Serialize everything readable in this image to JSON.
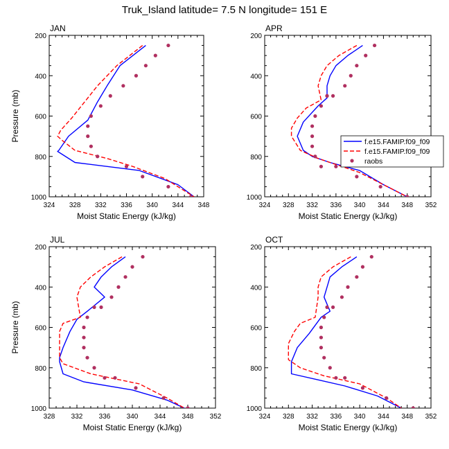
{
  "title": "Truk_Island  latitude= 7.5 N longitude= 151 E",
  "colors": {
    "model1": "#0000ff",
    "model2": "#ff0000",
    "obs": "#b03060",
    "axis": "#000000"
  },
  "legend": {
    "entries": [
      {
        "label": "f.e15.FAMIP.f09_f09",
        "style": "solid-line",
        "color": "#0000ff"
      },
      {
        "label": "f.e15.FAMIP.f09_f09",
        "style": "dashed-line",
        "color": "#ff0000"
      },
      {
        "label": "raobs",
        "style": "dot",
        "color": "#b03060"
      }
    ]
  },
  "chart_data": [
    {
      "type": "line",
      "label": "JAN",
      "xlabel": "Moist Static Energy (kJ/kg)",
      "ylabel": "Pressure (mb)",
      "xlim": [
        324,
        348
      ],
      "xticks": [
        324,
        328,
        332,
        336,
        340,
        344,
        348
      ],
      "ylim": [
        200,
        1000
      ],
      "yticks": [
        200,
        400,
        600,
        800,
        1000
      ],
      "y_reversed": true,
      "series": [
        {
          "name": "f.e15.FAMIP.f09_f09",
          "style": "solid",
          "x": [
            339,
            335,
            333,
            331.5,
            330,
            327,
            325.5,
            325.3,
            328,
            338,
            344,
            346.5
          ],
          "y": [
            250,
            350,
            450,
            530,
            620,
            700,
            770,
            775,
            830,
            870,
            940,
            1000
          ]
        },
        {
          "name": "f.e15.FAMIP.f09_f09",
          "style": "dashed",
          "x": [
            338.5,
            334.5,
            331.5,
            329.5,
            327.5,
            325.8,
            325.3,
            326,
            328,
            333,
            337,
            342,
            344.5,
            346.5
          ],
          "y": [
            250,
            350,
            450,
            530,
            610,
            670,
            700,
            720,
            770,
            810,
            850,
            910,
            960,
            1000
          ]
        },
        {
          "name": "raobs",
          "style": "dots",
          "x": [
            342.5,
            340.5,
            339,
            337.5,
            335.5,
            333.5,
            332,
            330.5,
            330,
            330,
            330.5,
            331.5,
            336,
            338.5,
            342.5,
            346
          ],
          "y": [
            250,
            300,
            350,
            400,
            450,
            500,
            550,
            600,
            650,
            700,
            750,
            800,
            850,
            900,
            950,
            1000
          ]
        }
      ]
    },
    {
      "type": "line",
      "label": "APR",
      "xlabel": "Moist Static Energy (kJ/kg)",
      "ylabel": "",
      "xlim": [
        324,
        352
      ],
      "xticks": [
        324,
        328,
        332,
        336,
        340,
        344,
        348,
        352
      ],
      "ylim": [
        200,
        1000
      ],
      "yticks": [
        200,
        400,
        600,
        800,
        1000
      ],
      "y_reversed": true,
      "series": [
        {
          "name": "f.e15.FAMIP.f09_f09",
          "style": "solid",
          "x": [
            340.5,
            338,
            336,
            335,
            334.5,
            334.5,
            333,
            330.5,
            329.5,
            330.5,
            332,
            335,
            340,
            344,
            348
          ],
          "y": [
            250,
            300,
            350,
            400,
            450,
            510,
            550,
            630,
            700,
            770,
            800,
            830,
            870,
            940,
            1000
          ]
        },
        {
          "name": "f.e15.FAMIP.f09_f09",
          "style": "dashed",
          "x": [
            339.5,
            336.5,
            334.5,
            333.5,
            333,
            333.5,
            331,
            329.5,
            328.5,
            328.5,
            330,
            333,
            336,
            340,
            344,
            348
          ],
          "y": [
            250,
            300,
            350,
            400,
            450,
            520,
            560,
            610,
            660,
            700,
            770,
            810,
            840,
            880,
            940,
            1000
          ]
        },
        {
          "name": "raobs",
          "style": "dots",
          "x": [
            342.5,
            341,
            339.5,
            338.5,
            337.5,
            335.5,
            334.5,
            334.5,
            333.5,
            332.5,
            332,
            332,
            332,
            332.5,
            333.5,
            336,
            339.5,
            343.5,
            348
          ],
          "y": [
            250,
            300,
            350,
            400,
            450,
            500,
            500,
            500,
            550,
            600,
            650,
            700,
            750,
            800,
            850,
            850,
            900,
            950,
            1000
          ]
        }
      ]
    },
    {
      "type": "line",
      "label": "JUL",
      "xlabel": "Moist Static Energy (kJ/kg)",
      "ylabel": "Pressure (mb)",
      "xlim": [
        328,
        352
      ],
      "xticks": [
        328,
        332,
        336,
        340,
        344,
        348,
        352
      ],
      "ylim": [
        200,
        1000
      ],
      "yticks": [
        200,
        400,
        600,
        800,
        1000
      ],
      "y_reversed": true,
      "series": [
        {
          "name": "f.e15.FAMIP.f09_f09",
          "style": "solid",
          "x": [
            339,
            337,
            335.5,
            334.5,
            336,
            333.5,
            332,
            331,
            330,
            329.5,
            329.5,
            330,
            333,
            340,
            345,
            347.5
          ],
          "y": [
            250,
            300,
            350,
            400,
            450,
            520,
            560,
            620,
            700,
            750,
            770,
            830,
            870,
            910,
            960,
            1000
          ]
        },
        {
          "name": "f.e15.FAMIP.f09_f09",
          "style": "dashed",
          "x": [
            338.5,
            336,
            334,
            332.5,
            332,
            332.5,
            330,
            329.5,
            329.5,
            329.5,
            330,
            334,
            341,
            345,
            347.5
          ],
          "y": [
            250,
            300,
            350,
            400,
            450,
            550,
            580,
            620,
            680,
            750,
            780,
            830,
            880,
            950,
            1000
          ]
        },
        {
          "name": "raobs",
          "style": "dots",
          "x": [
            341.5,
            340,
            339,
            338,
            337,
            335.5,
            334.5,
            333.5,
            333,
            333,
            333,
            333.5,
            334.5,
            336,
            337.5,
            340.5,
            344.5,
            348
          ],
          "y": [
            250,
            300,
            350,
            400,
            450,
            500,
            500,
            550,
            600,
            650,
            700,
            750,
            800,
            850,
            850,
            900,
            950,
            1000
          ]
        }
      ]
    },
    {
      "type": "line",
      "label": "OCT",
      "xlabel": "Moist Static Energy (kJ/kg)",
      "ylabel": "",
      "xlim": [
        324,
        352
      ],
      "xticks": [
        324,
        328,
        332,
        336,
        340,
        344,
        348,
        352
      ],
      "ylim": [
        200,
        1000
      ],
      "yticks": [
        200,
        400,
        600,
        800,
        1000
      ],
      "y_reversed": true,
      "series": [
        {
          "name": "f.e15.FAMIP.f09_f09",
          "style": "solid",
          "x": [
            339.5,
            337,
            335,
            334.5,
            334,
            335,
            333.5,
            331.5,
            329.5,
            328.5,
            328.5,
            333,
            337.5,
            343,
            347
          ],
          "y": [
            250,
            300,
            350,
            400,
            450,
            520,
            550,
            630,
            700,
            770,
            830,
            860,
            890,
            940,
            1000
          ]
        },
        {
          "name": "f.e15.FAMIP.f09_f09",
          "style": "dashed",
          "x": [
            338.5,
            335.5,
            333.5,
            333,
            333,
            332.5,
            330,
            329,
            328,
            328,
            330,
            334,
            340,
            344.5,
            347
          ],
          "y": [
            250,
            300,
            350,
            400,
            450,
            550,
            580,
            620,
            680,
            760,
            800,
            840,
            880,
            950,
            1000
          ]
        },
        {
          "name": "raobs",
          "style": "dots",
          "x": [
            342,
            340.5,
            339.5,
            338,
            337,
            335.5,
            334.5,
            334,
            333.5,
            333.5,
            333.5,
            334,
            335,
            336,
            337.5,
            340.5,
            344.5,
            349
          ],
          "y": [
            250,
            300,
            350,
            400,
            450,
            500,
            500,
            550,
            600,
            650,
            700,
            750,
            800,
            850,
            850,
            900,
            950,
            1000
          ]
        }
      ]
    }
  ]
}
